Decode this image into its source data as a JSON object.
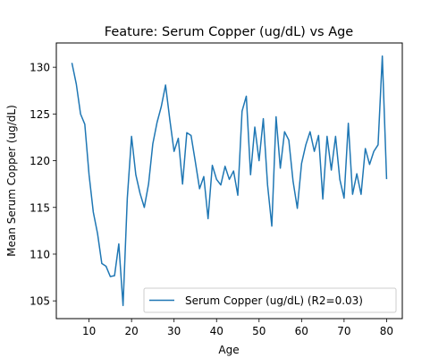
{
  "chart_data": {
    "type": "line",
    "title": "Feature: Serum Copper (ug/dL) vs Age",
    "xlabel": "Age",
    "ylabel": "Mean Serum Copper (ug/dL)",
    "xlim": [
      2.3,
      83.7
    ],
    "ylim": [
      103.1,
      132.6
    ],
    "xticks": [
      10,
      20,
      30,
      40,
      50,
      60,
      70,
      80
    ],
    "yticks": [
      105,
      110,
      115,
      120,
      125,
      130
    ],
    "grid": false,
    "legend_position": "lower-right",
    "series": [
      {
        "name": "Serum Copper (ug/dL) (R2=0.03)",
        "color": "#1f77b4",
        "x": [
          6,
          7,
          8,
          9,
          10,
          11,
          12,
          13,
          14,
          15,
          16,
          17,
          18,
          19,
          20,
          21,
          22,
          23,
          24,
          25,
          26,
          27,
          28,
          29,
          30,
          31,
          32,
          33,
          34,
          35,
          36,
          37,
          38,
          39,
          40,
          41,
          42,
          43,
          44,
          45,
          46,
          47,
          48,
          49,
          50,
          51,
          52,
          53,
          54,
          55,
          56,
          57,
          58,
          59,
          60,
          61,
          62,
          63,
          64,
          65,
          66,
          67,
          68,
          69,
          70,
          71,
          72,
          73,
          74,
          75,
          76,
          77,
          78,
          79,
          80
        ],
        "y": [
          130.4,
          128.2,
          125.0,
          123.9,
          118.5,
          114.5,
          112.2,
          109.0,
          108.7,
          107.6,
          107.7,
          111.1,
          104.5,
          116.0,
          122.6,
          118.5,
          116.5,
          115.0,
          117.5,
          121.8,
          124.1,
          125.8,
          128.1,
          124.4,
          121.0,
          122.4,
          117.5,
          123.0,
          122.7,
          119.9,
          117.0,
          118.3,
          113.8,
          119.5,
          118.0,
          117.4,
          119.4,
          118.0,
          118.9,
          116.3,
          125.3,
          126.9,
          118.5,
          123.6,
          120.0,
          124.5,
          117.4,
          113.0,
          124.7,
          119.2,
          123.1,
          122.2,
          117.8,
          114.9,
          119.7,
          121.7,
          123.1,
          121.0,
          122.7,
          115.9,
          122.6,
          119.0,
          122.6,
          118.0,
          116.0,
          124.0,
          116.4,
          118.6,
          116.4,
          121.3,
          119.6,
          121.0,
          121.7,
          131.2,
          118.1
        ]
      }
    ]
  }
}
